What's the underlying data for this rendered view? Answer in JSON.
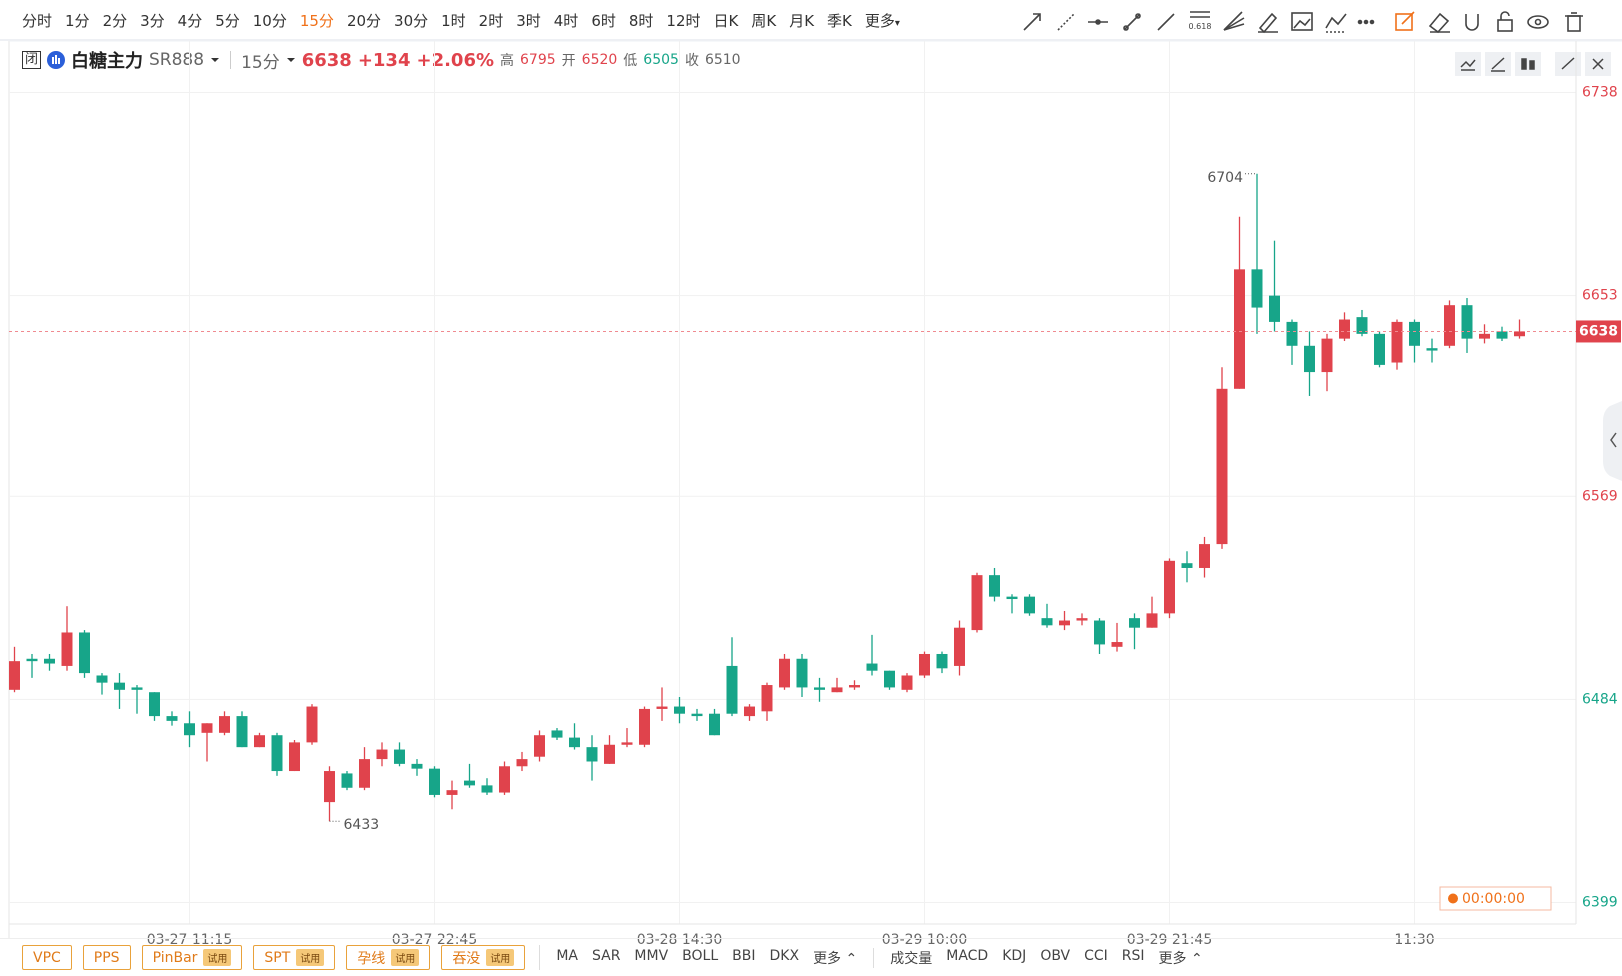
{
  "toolbar": {
    "intervals": [
      "分时",
      "1分",
      "2分",
      "3分",
      "4分",
      "5分",
      "10分",
      "15分",
      "20分",
      "30分",
      "1时",
      "2时",
      "3时",
      "4时",
      "6时",
      "8时",
      "12时",
      "日K",
      "周K",
      "月K",
      "季K"
    ],
    "active_index": 7,
    "more": "更多",
    "fib_label": "0.618"
  },
  "header": {
    "status": "闭",
    "name": "白糖主力",
    "code": "SR888",
    "interval": "15分",
    "last": "6638",
    "change": "+134",
    "change_pct": "+2.06%",
    "high_label": "高",
    "high": "6795",
    "open_label": "开",
    "open": "6520",
    "low_label": "低",
    "low": "6505",
    "close_label": "收",
    "close": "6510"
  },
  "chart_data": {
    "type": "candlestick",
    "categories": [
      null,
      null,
      null,
      null,
      null,
      null,
      null,
      null,
      null,
      null,
      "03-27 11:15",
      null,
      null,
      null,
      null,
      null,
      null,
      null,
      null,
      null,
      null,
      null,
      null,
      null,
      "03-27 22:45",
      null,
      null,
      null,
      null,
      null,
      null,
      null,
      null,
      null,
      null,
      null,
      null,
      null,
      "03-28 14:30",
      null,
      null,
      null,
      null,
      null,
      null,
      null,
      null,
      null,
      null,
      null,
      null,
      null,
      "03-29 10:00",
      null,
      null,
      null,
      null,
      null,
      null,
      null,
      null,
      null,
      null,
      null,
      null,
      null,
      "03-29 21:45",
      null,
      null,
      null,
      null,
      null,
      null,
      null,
      null,
      null,
      null,
      null,
      null,
      null,
      "11:30",
      null,
      null,
      null,
      null,
      null,
      null
    ],
    "open": [
      6488,
      6501,
      6501,
      6498,
      6512,
      6494,
      6491,
      6489,
      6487,
      6477,
      6474,
      6470,
      6470,
      6477,
      6464,
      6469,
      6454,
      6466,
      6441,
      6453,
      6447,
      6459,
      6463,
      6457,
      6455,
      6444,
      6450,
      6448,
      6445,
      6456,
      6460,
      6471,
      6468,
      6464,
      6457,
      6465,
      6465,
      6480,
      6481,
      6478,
      6478,
      6498,
      6477,
      6479,
      6489,
      6501,
      6489,
      6487,
      6489,
      6499,
      6496,
      6488,
      6494,
      6503,
      6498,
      6513,
      6536,
      6527,
      6527,
      6518,
      6515,
      6517,
      6517,
      6506,
      6518,
      6514,
      6520,
      6541,
      6539,
      6549,
      6614,
      6664,
      6653,
      6642,
      6632,
      6621,
      6635,
      6644,
      6637,
      6625,
      6642,
      6631,
      6632,
      6649,
      6635,
      6638,
      6636
    ],
    "high": [
      6506,
      6503,
      6503,
      6523,
      6513,
      6495,
      6495,
      6490,
      6487,
      6479,
      6479,
      6474,
      6479,
      6479,
      6470,
      6470,
      6467,
      6482,
      6456,
      6454,
      6464,
      6466,
      6466,
      6459,
      6456,
      6450,
      6457,
      6451,
      6458,
      6462,
      6471,
      6472,
      6474,
      6469,
      6469,
      6472,
      6481,
      6489,
      6485,
      6480,
      6480,
      6510,
      6482,
      6491,
      6503,
      6503,
      6493,
      6493,
      6492,
      6511,
      6496,
      6495,
      6504,
      6504,
      6517,
      6537,
      6539,
      6528,
      6528,
      6524,
      6521,
      6520,
      6518,
      6516,
      6520,
      6527,
      6543,
      6546,
      6552,
      6623,
      6686,
      6704,
      6676,
      6643,
      6638,
      6637,
      6646,
      6647,
      6638,
      6643,
      6643,
      6635,
      6651,
      6652,
      6641,
      6640,
      6643
    ],
    "low": [
      6487,
      6493,
      6496,
      6496,
      6493,
      6486,
      6480,
      6478,
      6475,
      6473,
      6464,
      6458,
      6469,
      6464,
      6464,
      6452,
      6454,
      6465,
      6433,
      6446,
      6446,
      6456,
      6456,
      6452,
      6443,
      6438,
      6447,
      6444,
      6444,
      6454,
      6458,
      6467,
      6463,
      6450,
      6457,
      6464,
      6464,
      6475,
      6474,
      6475,
      6469,
      6477,
      6475,
      6475,
      6488,
      6485,
      6483,
      6487,
      6488,
      6494,
      6488,
      6487,
      6493,
      6495,
      6494,
      6512,
      6525,
      6520,
      6519,
      6514,
      6513,
      6515,
      6503,
      6504,
      6505,
      6514,
      6518,
      6533,
      6535,
      6547,
      6614,
      6637,
      6638,
      6624,
      6611,
      6613,
      6634,
      6636,
      6623,
      6622,
      6625,
      6625,
      6631,
      6629,
      6633,
      6634,
      6635
    ],
    "close": [
      6500,
      6500,
      6499,
      6512,
      6495,
      6491,
      6488,
      6488,
      6477,
      6475,
      6469,
      6474,
      6477,
      6464,
      6469,
      6454,
      6466,
      6481,
      6454,
      6447,
      6459,
      6463,
      6457,
      6455,
      6444,
      6446,
      6448,
      6445,
      6456,
      6459,
      6469,
      6468,
      6464,
      6458,
      6465,
      6466,
      6480,
      6481,
      6478,
      6477,
      6469,
      6478,
      6481,
      6490,
      6501,
      6489,
      6488,
      6489,
      6490,
      6496,
      6489,
      6494,
      6503,
      6497,
      6514,
      6536,
      6527,
      6526,
      6520,
      6515,
      6517,
      6518,
      6507,
      6508,
      6514,
      6520,
      6542,
      6539,
      6549,
      6614,
      6664,
      6648,
      6642,
      6632,
      6621,
      6635,
      6643,
      6637,
      6624,
      6642,
      6632,
      6630,
      6649,
      6635,
      6637,
      6635,
      6638
    ],
    "up_color": "#e0434c",
    "down_color": "#17a589",
    "ylim": [
      6395,
      6742
    ],
    "yticks": [
      6399,
      6484,
      6569,
      6653,
      6738
    ],
    "ytick_colors": [
      "#17a589",
      "#17a589",
      "#e0434c",
      "#e0434c",
      "#e0434c"
    ],
    "grid": true,
    "max_label_index": 71,
    "min_label_index": 18,
    "timer": "00:00:00"
  },
  "bottom": {
    "patterns": [
      {
        "name": "VPC"
      },
      {
        "name": "PPS"
      },
      {
        "name": "PinBar",
        "tag": "试用"
      },
      {
        "name": "SPT",
        "tag": "试用"
      },
      {
        "name": "孕线",
        "tag": "试用"
      },
      {
        "name": "吞没",
        "tag": "试用"
      }
    ],
    "main_indicators": [
      "MA",
      "SAR",
      "MMV",
      "BOLL",
      "BBI",
      "DKX"
    ],
    "main_more": "更多",
    "sub_indicators": [
      "成交量",
      "MACD",
      "KDJ",
      "OBV",
      "CCI",
      "RSI"
    ],
    "sub_more": "更多"
  }
}
